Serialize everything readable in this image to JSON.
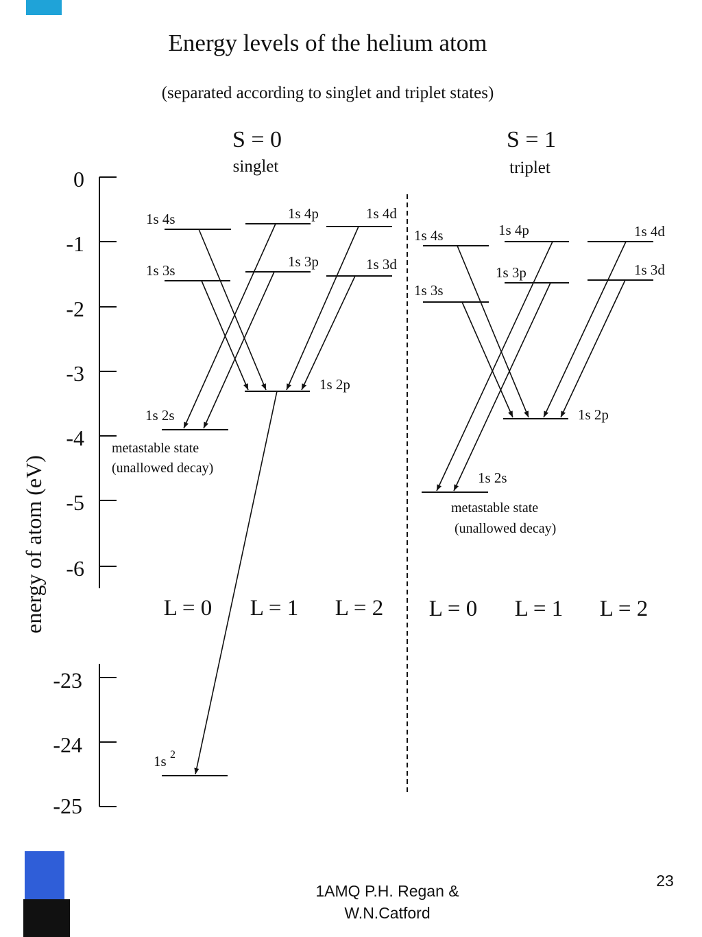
{
  "title": "Energy levels of the helium atom",
  "subtitle": "(separated according to singlet and triplet states)",
  "colors": {
    "accent_blue": "#2f5ed8",
    "accent_cyan": "#1fa3d8",
    "ink": "#111111"
  },
  "y_axis": {
    "label": "energy of atom (eV)",
    "ticks_upper": [
      "0",
      "-1",
      "-2",
      "-3",
      "-4",
      "-5",
      "-6"
    ],
    "ticks_lower": [
      "-23",
      "-24",
      "-25"
    ]
  },
  "panels": [
    {
      "id": "singlet",
      "spin": "S = 0",
      "name": "singlet",
      "l_labels": [
        "L = 0",
        "L = 1",
        "L = 2"
      ],
      "note_line1": "metastable state",
      "note_line2": "(unallowed decay)",
      "levels": [
        {
          "label": "1s 4s",
          "L": 0,
          "energy": -0.8
        },
        {
          "label": "1s 3s",
          "L": 0,
          "energy": -1.6
        },
        {
          "label": "1s 2s",
          "L": 0,
          "energy": -3.9
        },
        {
          "label": "1s 4p",
          "L": 1,
          "energy": -0.7
        },
        {
          "label": "1s 3p",
          "L": 1,
          "energy": -1.5
        },
        {
          "label": "1s 2p",
          "L": 1,
          "energy": -3.3
        },
        {
          "label": "1s 4d",
          "L": 2,
          "energy": -0.75
        },
        {
          "label": "1s 3d",
          "L": 2,
          "energy": -1.55
        },
        {
          "label": "1s",
          "superscript": "2",
          "L": 0,
          "energy": -24.5
        }
      ]
    },
    {
      "id": "triplet",
      "spin": "S = 1",
      "name": "triplet",
      "l_labels": [
        "L = 0",
        "L = 1",
        "L = 2"
      ],
      "note_line1": "metastable state",
      "note_line2": "(unallowed decay)",
      "levels": [
        {
          "label": "1s 4s",
          "L": 0,
          "energy": -1.05
        },
        {
          "label": "1s 3s",
          "L": 0,
          "energy": -1.9
        },
        {
          "label": "1s 2s",
          "L": 0,
          "energy": -4.85
        },
        {
          "label": "1s 4p",
          "L": 1,
          "energy": -1.0
        },
        {
          "label": "1s 3p",
          "L": 1,
          "energy": -1.65
        },
        {
          "label": "1s 2p",
          "L": 1,
          "energy": -3.75
        },
        {
          "label": "1s 4d",
          "L": 2,
          "energy": -1.0
        },
        {
          "label": "1s 3d",
          "L": 2,
          "energy": -1.6
        }
      ]
    }
  ],
  "footer": {
    "line1": "1AMQ P.H. Regan &",
    "line2": "W.N.Catford",
    "page_number": "23"
  }
}
